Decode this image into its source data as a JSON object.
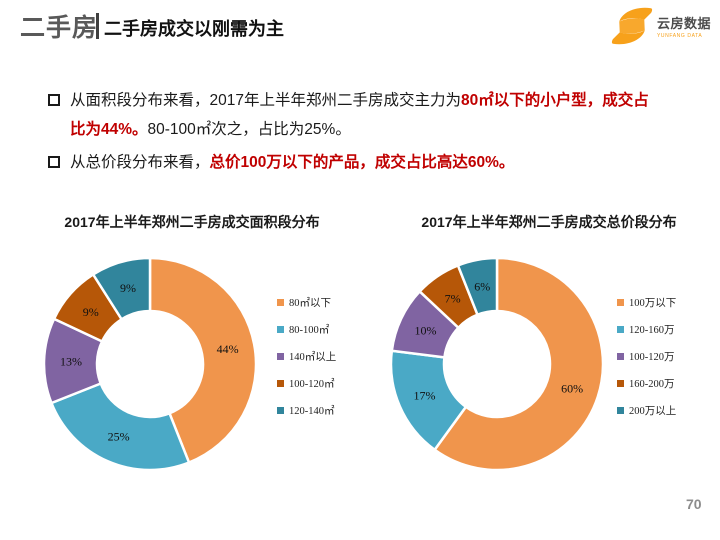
{
  "header": {
    "section": "二手房",
    "divider": "|",
    "title": "二手房成交以刚需为主"
  },
  "logo": {
    "name": "云房数据",
    "subname": "YUNFANG DATA",
    "color": "#F7A11B"
  },
  "bullets": [
    {
      "segments": [
        {
          "text": "从面积段分布来看，2017年上半年郑州二手房成交主力为",
          "emphasis": false
        },
        {
          "text": "80㎡以下的小户型，成交占比为44%。",
          "emphasis": true
        },
        {
          "text": "80-100㎡次之，占比为25%。",
          "emphasis": false
        }
      ]
    },
    {
      "segments": [
        {
          "text": "从总价段分布来看，",
          "emphasis": false
        },
        {
          "text": "总价100万以下的产品，成交占比高达60%。",
          "emphasis": true
        }
      ]
    }
  ],
  "page_number": "70",
  "colors": {
    "emphasis_red": "#C00000",
    "header_gray": "#595959",
    "text_black": "#1A1A1A",
    "page_gray": "#8C8C8C"
  },
  "chart_data": [
    {
      "type": "pie",
      "subtype": "donut",
      "title": "2017年上半年郑州二手房成交面积段分布",
      "categories": [
        "80㎡以下",
        "80-100㎡",
        "140㎡以上",
        "100-120㎡",
        "120-140㎡"
      ],
      "values": [
        44,
        25,
        13,
        9,
        9
      ],
      "labels": [
        "44%",
        "25%",
        "13%",
        "9%",
        "9%"
      ],
      "colors": [
        "#F0954C",
        "#4AA9C6",
        "#8064A2",
        "#B65708",
        "#31859C"
      ],
      "legend_position": "right",
      "start_angle_deg": 0,
      "direction": "clockwise"
    },
    {
      "type": "pie",
      "subtype": "donut",
      "title": "2017年上半年郑州二手房成交总价段分布",
      "categories": [
        "100万以下",
        "120-160万",
        "100-120万",
        "160-200万",
        "200万以上"
      ],
      "values": [
        60,
        17,
        10,
        7,
        6
      ],
      "labels": [
        "60%",
        "17%",
        "10%",
        "7%",
        "6%"
      ],
      "colors": [
        "#F0954C",
        "#4AA9C6",
        "#8064A2",
        "#B65708",
        "#31859C"
      ],
      "legend_position": "right",
      "start_angle_deg": 0,
      "direction": "clockwise"
    }
  ]
}
